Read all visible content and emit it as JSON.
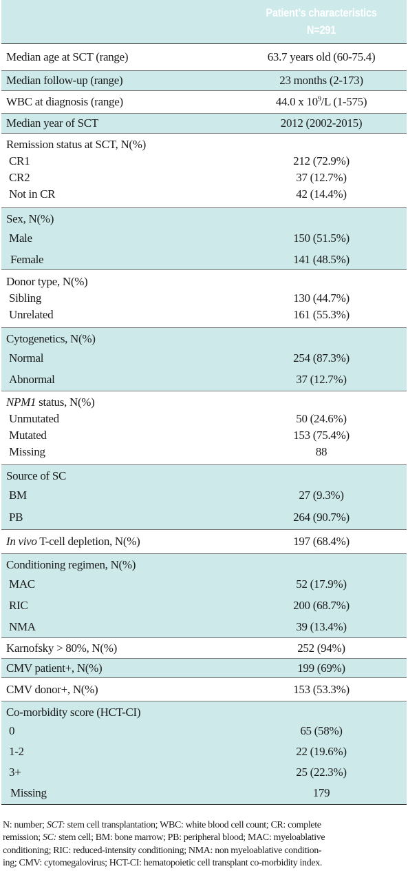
{
  "header": {
    "title": "Patient’s characteristics",
    "n": "N=291"
  },
  "rows": {
    "age": {
      "label": "Median age at SCT (range)",
      "value": "63.7 years old (60-75.4)"
    },
    "followup": {
      "label": "Median follow-up (range)",
      "value": "23 months (2-173)"
    },
    "wbc": {
      "label": "WBC at diagnosis (range)",
      "value_pre": "44.0 x 10",
      "value_sup": "9",
      "value_post": "/L (1-575)"
    },
    "year": {
      "label": "Median year of SCT",
      "value": "2012 (2002-2015)"
    },
    "remission": {
      "label": "Remission status at SCT, N(%)",
      "items": [
        {
          "label": "CR1",
          "value": "212 (72.9%)"
        },
        {
          "label": "CR2",
          "value": "37 (12.7%)"
        },
        {
          "label": "Not in CR",
          "value": "42 (14.4%)"
        }
      ]
    },
    "sex": {
      "label": "Sex, N(%)",
      "items": [
        {
          "label": "Male",
          "value": "150 (51.5%)"
        },
        {
          "label": "Female",
          "value": "141 (48.5%)"
        }
      ]
    },
    "donor": {
      "label": "Donor type, N(%)",
      "items": [
        {
          "label": "Sibling",
          "value": "130 (44.7%)"
        },
        {
          "label": "Unrelated",
          "value": "161 (55.3%)"
        }
      ]
    },
    "cyto": {
      "label": "Cytogenetics, N(%)",
      "items": [
        {
          "label": "Normal",
          "value": "254 (87.3%)"
        },
        {
          "label": "Abnormal",
          "value": "37 (12.7%)"
        }
      ]
    },
    "npm1": {
      "label_italic": "NPM1",
      "label_rest": " status, N(%)",
      "items": [
        {
          "label": "Unmutated",
          "value": "50 (24.6%)"
        },
        {
          "label": "Mutated",
          "value": "153 (75.4%)"
        },
        {
          "label": "Missing",
          "value": "88"
        }
      ]
    },
    "source": {
      "label": "Source of SC",
      "items": [
        {
          "label": "BM",
          "value": "27 (9.3%)"
        },
        {
          "label": "PB",
          "value": "264 (90.7%)"
        }
      ]
    },
    "tcd": {
      "label_italic": "In vivo",
      "label_rest": " T-cell depletion, N(%)",
      "value": "197 (68.4%)"
    },
    "cond": {
      "label": "Conditioning regimen, N(%)",
      "items": [
        {
          "label": "MAC",
          "value": "52 (17.9%)"
        },
        {
          "label": "RIC",
          "value": "200 (68.7%)"
        },
        {
          "label": "NMA",
          "value": "39 (13.4%)"
        }
      ]
    },
    "karnofsky": {
      "label": "Karnofsky > 80%, N(%)",
      "value": "252 (94%)"
    },
    "cmv_patient": {
      "label": "CMV patient+, N(%)",
      "value": "199 (69%)"
    },
    "cmv_donor": {
      "label": "CMV donor+, N(%)",
      "value": "153 (53.3%)"
    },
    "hctci": {
      "label": "Co-morbidity score (HCT-CI)",
      "items": [
        {
          "label": "0",
          "value": "65 (58%)"
        },
        {
          "label": "1-2",
          "value": "22 (19.6%)"
        },
        {
          "label": "3+",
          "value": "25 (22.3%)"
        },
        {
          "label": "Missing",
          "value": "179"
        }
      ]
    }
  },
  "footnote": {
    "l1": "N: number; ",
    "l1_i1": "SCT:",
    "l1_b": " stem cell transplantation; WBC: white blood cell count; CR: complete",
    "l2_a": "remission; ",
    "l2_i": "SC:",
    "l2_b": " stem cell; BM: bone marrow; PB: peripheral blood; MAC: myeloablative",
    "l3": "conditioning; RIC: reduced-intensity conditioning; NMA: non myeloablative condition-",
    "l4": "ing; CMV:  cytomegalovirus; HCT-CI: hematopoietic cell transplant co-morbidity index."
  }
}
